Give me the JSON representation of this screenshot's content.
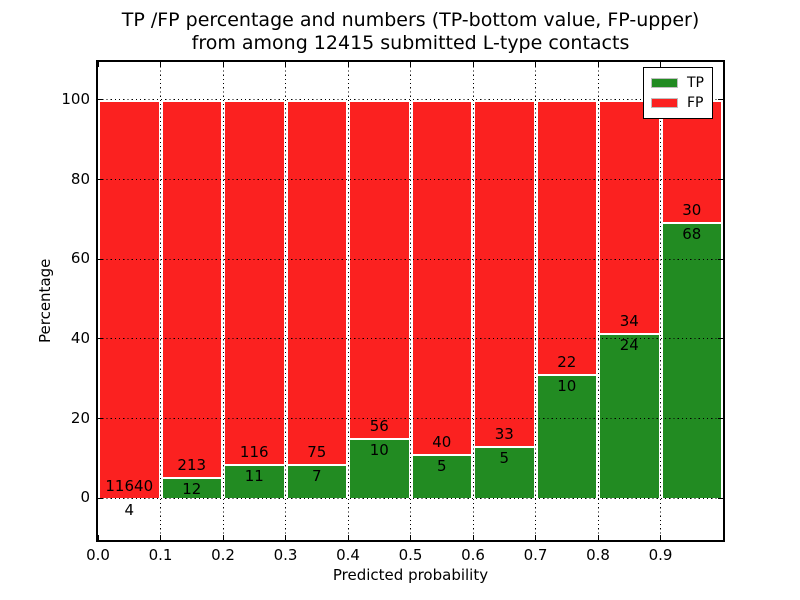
{
  "figure": {
    "title_line1": "TP /FP percentage and numbers (TP-bottom value, FP-upper)",
    "title_line2": "from among 12415 submitted L-type contacts"
  },
  "chart_data": {
    "type": "bar",
    "stacked": true,
    "normalized": "each bin stacked to 100%",
    "title": "TP /FP percentage and numbers (TP-bottom value, FP-upper) from among 12415 submitted L-type contacts",
    "xlabel": "Predicted probability",
    "ylabel": "Percentage",
    "xlim": [
      0.0,
      1.0
    ],
    "ylim": [
      -10.5,
      109.5
    ],
    "xtick_labels": [
      "0.0",
      "0.1",
      "0.2",
      "0.3",
      "0.4",
      "0.5",
      "0.6",
      "0.7",
      "0.8",
      "0.9"
    ],
    "ytick_values": [
      0,
      20,
      40,
      60,
      80,
      100
    ],
    "grid": "dotted black",
    "bar_edge_color": "#ffffff",
    "bin_width": 0.1,
    "bin_starts": [
      0.0,
      0.1,
      0.2,
      0.3,
      0.4,
      0.5,
      0.6,
      0.7,
      0.8,
      0.9
    ],
    "series": [
      {
        "name": "TP",
        "color": "#228b22",
        "counts": [
          4,
          12,
          11,
          7,
          10,
          5,
          5,
          10,
          24,
          68
        ]
      },
      {
        "name": "FP",
        "color": "#fb2120",
        "counts": [
          11640,
          213,
          116,
          75,
          56,
          40,
          33,
          22,
          34,
          30
        ]
      }
    ],
    "tp_percent_per_bin": [
      0.03,
      5.33,
      8.66,
      8.54,
      15.15,
      11.11,
      13.16,
      31.25,
      41.38,
      69.39
    ],
    "total_contacts": 12415,
    "legend": {
      "position": "upper-right",
      "entries": [
        {
          "label": "TP",
          "color": "#228b22"
        },
        {
          "label": "FP",
          "color": "#fb2120"
        }
      ]
    }
  }
}
